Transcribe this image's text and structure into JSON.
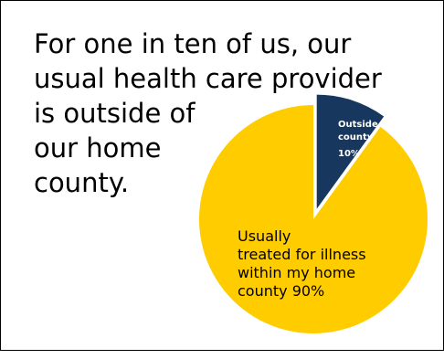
{
  "headline": {
    "lines": [
      "For one in ten of us, our",
      "usual health care provider",
      "is outside of",
      "our home",
      "county."
    ]
  },
  "chart_data": {
    "type": "pie",
    "title": "",
    "exploded_slice": "Outside my county",
    "slices": [
      {
        "name": "Outside my county",
        "value": 10,
        "color": "#17375e",
        "label_lines": [
          "Outside my",
          "county",
          "10%"
        ]
      },
      {
        "name": "Usually treated for illness within my home county",
        "value": 90,
        "color": "#ffcc00",
        "label_lines": [
          "Usually",
          "treated for illness",
          "within my home",
          "county  90%"
        ]
      }
    ]
  }
}
